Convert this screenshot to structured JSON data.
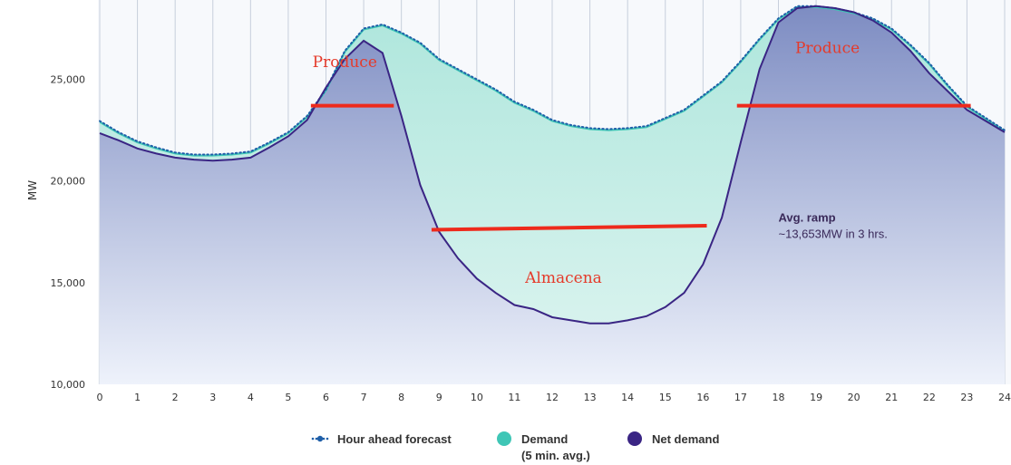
{
  "chart_data": {
    "type": "area",
    "xlabel": "",
    "ylabel": "MW",
    "xlim": [
      0,
      24
    ],
    "ylim": [
      10000,
      28500
    ],
    "x_ticks": [
      "0",
      "1",
      "2",
      "3",
      "4",
      "5",
      "6",
      "7",
      "8",
      "9",
      "10",
      "11",
      "12",
      "13",
      "14",
      "15",
      "16",
      "17",
      "18",
      "19",
      "20",
      "21",
      "22",
      "23",
      "24"
    ],
    "y_ticks": [
      "10,000",
      "15,000",
      "20,000",
      "25,000"
    ],
    "y_tick_values": [
      10000,
      15000,
      20000,
      25000
    ],
    "grid": "vertical",
    "legend_position": "bottom",
    "legend": [
      {
        "label": "Hour ahead forecast",
        "sublabel": ""
      },
      {
        "label": "Demand",
        "sublabel": "(5 min. avg.)"
      },
      {
        "label": "Net demand",
        "sublabel": ""
      }
    ],
    "x": [
      0,
      0.5,
      1,
      1.5,
      2,
      2.5,
      3,
      3.5,
      4,
      4.5,
      5,
      5.5,
      6,
      6.5,
      7,
      7.5,
      8,
      8.5,
      9,
      9.5,
      10,
      10.5,
      11,
      11.5,
      12,
      12.5,
      13,
      13.5,
      14,
      14.5,
      15,
      15.5,
      16,
      16.5,
      17,
      17.5,
      18,
      18.5,
      19,
      19.5,
      20,
      20.5,
      21,
      21.5,
      22,
      22.5,
      23,
      23.5,
      24
    ],
    "series": [
      {
        "name": "Hour ahead forecast",
        "color": "#1f5fa8",
        "values": [
          22950,
          22400,
          21950,
          21650,
          21400,
          21300,
          21300,
          21350,
          21450,
          21900,
          22400,
          23200,
          24500,
          26400,
          27500,
          27700,
          27300,
          26800,
          26000,
          25500,
          25000,
          24500,
          23900,
          23500,
          23000,
          22750,
          22600,
          22550,
          22600,
          22700,
          23100,
          23500,
          24200,
          24900,
          25900,
          27000,
          28000,
          28600,
          28600,
          28500,
          28300,
          28000,
          27500,
          26700,
          25800,
          24700,
          23700,
          23100,
          22500
        ]
      },
      {
        "name": "Demand",
        "color": "#3fc6b6",
        "values": [
          22900,
          22350,
          21900,
          21600,
          21350,
          21250,
          21250,
          21300,
          21400,
          21850,
          22350,
          23150,
          24450,
          26350,
          27450,
          27650,
          27250,
          26750,
          25950,
          25450,
          24950,
          24450,
          23850,
          23450,
          22950,
          22700,
          22550,
          22500,
          22550,
          22650,
          23050,
          23450,
          24150,
          24850,
          25850,
          26950,
          27950,
          28550,
          28550,
          28450,
          28250,
          27950,
          27450,
          26650,
          25750,
          24650,
          23650,
          23050,
          22450
        ]
      },
      {
        "name": "Net demand",
        "color": "#3a2584",
        "values": [
          22350,
          22000,
          21600,
          21350,
          21150,
          21050,
          21000,
          21050,
          21150,
          21650,
          22200,
          23000,
          24600,
          26000,
          26900,
          26300,
          23200,
          19800,
          17500,
          16200,
          15200,
          14500,
          13900,
          13700,
          13300,
          13150,
          13000,
          13000,
          13150,
          13350,
          13800,
          14500,
          15900,
          18200,
          21900,
          25500,
          27800,
          28500,
          28600,
          28500,
          28300,
          27900,
          27300,
          26400,
          25300,
          24400,
          23500,
          22950,
          22400
        ]
      }
    ],
    "annotations": [
      {
        "text": "Produce",
        "x": 6.5,
        "y": 25600,
        "color": "#e53a2a"
      },
      {
        "text": "Produce",
        "x": 19.3,
        "y": 26300,
        "color": "#e53a2a"
      },
      {
        "text": "Almacena",
        "x": 12.3,
        "y": 15000,
        "color": "#e53a2a"
      },
      {
        "text": "Avg. ramp",
        "x": 18.0,
        "y": 18000,
        "color": "#3a2a5a"
      },
      {
        "text": "~13,653MW in 3 hrs.",
        "x": 18.0,
        "y": 17200,
        "color": "#3a2a5a"
      }
    ],
    "hlines": [
      {
        "x1": 5.6,
        "x2": 7.8,
        "y": 23700,
        "color": "#ee2a1c"
      },
      {
        "x1": 8.8,
        "x2": 16.1,
        "y": 17600,
        "y2": 17800,
        "color": "#ee2a1c"
      },
      {
        "x1": 16.9,
        "x2": 23.1,
        "y": 23700,
        "color": "#ee2a1c"
      }
    ]
  }
}
